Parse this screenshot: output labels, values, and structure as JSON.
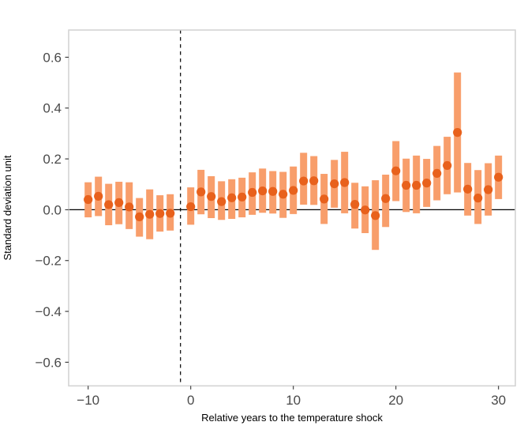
{
  "figure": {
    "background_color": "#ffffff",
    "panel_border_color": "#d4d4d4",
    "tick_mark_color": "#333333",
    "tick_label_color": "#4a4a4a",
    "zero_line_color": "#000000",
    "reference_line_color": "#000000",
    "point_color": "#e8611c",
    "interval_bar_color": "#f89e6b"
  },
  "chart_data": {
    "type": "scatter",
    "subtype": "event-study point estimates with confidence interval bars",
    "title": "",
    "xlabel": "Relative years to the temperature shock",
    "ylabel": "Standard deviation unit",
    "xlim": [
      -11.9,
      31.64
    ],
    "ylim": [
      -0.693,
      0.707
    ],
    "grid": "off",
    "legend": "none",
    "x_ticks": [
      -10,
      0,
      10,
      20,
      30
    ],
    "x_tick_labels": [
      "−10",
      "0",
      "10",
      "20",
      "30"
    ],
    "y_ticks": [
      0.6,
      0.4,
      0.2,
      0.0,
      -0.2,
      -0.4,
      -0.6
    ],
    "y_tick_labels": [
      "0.6",
      "0.4",
      "0.2",
      "0.0",
      "−0.2",
      "−0.4",
      "−0.6"
    ],
    "zero_line_y": 0,
    "reference_line_x": -1,
    "omitted_reference_year": -1,
    "points": [
      {
        "x": -10,
        "y": 0.04,
        "lo": -0.03,
        "hi": 0.108
      },
      {
        "x": -9,
        "y": 0.053,
        "lo": -0.025,
        "hi": 0.13
      },
      {
        "x": -8,
        "y": 0.02,
        "lo": -0.061,
        "hi": 0.102
      },
      {
        "x": -7,
        "y": 0.028,
        "lo": -0.057,
        "hi": 0.11
      },
      {
        "x": -6,
        "y": 0.011,
        "lo": -0.076,
        "hi": 0.108
      },
      {
        "x": -5,
        "y": -0.028,
        "lo": -0.106,
        "hi": 0.046
      },
      {
        "x": -4,
        "y": -0.018,
        "lo": -0.116,
        "hi": 0.08
      },
      {
        "x": -3,
        "y": -0.015,
        "lo": -0.086,
        "hi": 0.057
      },
      {
        "x": -2,
        "y": -0.014,
        "lo": -0.082,
        "hi": 0.061
      },
      {
        "x": 0,
        "y": 0.012,
        "lo": -0.059,
        "hi": 0.088
      },
      {
        "x": 1,
        "y": 0.07,
        "lo": -0.018,
        "hi": 0.157
      },
      {
        "x": 2,
        "y": 0.052,
        "lo": -0.033,
        "hi": 0.132
      },
      {
        "x": 3,
        "y": 0.032,
        "lo": -0.04,
        "hi": 0.112
      },
      {
        "x": 4,
        "y": 0.047,
        "lo": -0.036,
        "hi": 0.12
      },
      {
        "x": 5,
        "y": 0.05,
        "lo": -0.03,
        "hi": 0.126
      },
      {
        "x": 6,
        "y": 0.068,
        "lo": -0.02,
        "hi": 0.147
      },
      {
        "x": 7,
        "y": 0.074,
        "lo": -0.012,
        "hi": 0.162
      },
      {
        "x": 8,
        "y": 0.072,
        "lo": -0.015,
        "hi": 0.152
      },
      {
        "x": 9,
        "y": 0.061,
        "lo": -0.032,
        "hi": 0.149
      },
      {
        "x": 10,
        "y": 0.076,
        "lo": -0.017,
        "hi": 0.17
      },
      {
        "x": 11,
        "y": 0.113,
        "lo": 0.02,
        "hi": 0.224
      },
      {
        "x": 12,
        "y": 0.114,
        "lo": 0.019,
        "hi": 0.211
      },
      {
        "x": 13,
        "y": 0.042,
        "lo": -0.056,
        "hi": 0.141
      },
      {
        "x": 14,
        "y": 0.102,
        "lo": 0.008,
        "hi": 0.196
      },
      {
        "x": 15,
        "y": 0.107,
        "lo": -0.014,
        "hi": 0.228
      },
      {
        "x": 16,
        "y": 0.021,
        "lo": -0.074,
        "hi": 0.106
      },
      {
        "x": 17,
        "y": -0.001,
        "lo": -0.092,
        "hi": 0.092
      },
      {
        "x": 18,
        "y": -0.023,
        "lo": -0.158,
        "hi": 0.116
      },
      {
        "x": 19,
        "y": 0.044,
        "lo": -0.068,
        "hi": 0.138
      },
      {
        "x": 20,
        "y": 0.153,
        "lo": 0.034,
        "hi": 0.27
      },
      {
        "x": 21,
        "y": 0.096,
        "lo": -0.009,
        "hi": 0.201
      },
      {
        "x": 22,
        "y": 0.096,
        "lo": -0.014,
        "hi": 0.213
      },
      {
        "x": 23,
        "y": 0.105,
        "lo": 0.011,
        "hi": 0.2
      },
      {
        "x": 24,
        "y": 0.143,
        "lo": 0.037,
        "hi": 0.251
      },
      {
        "x": 25,
        "y": 0.174,
        "lo": 0.061,
        "hi": 0.287
      },
      {
        "x": 26,
        "y": 0.304,
        "lo": 0.068,
        "hi": 0.54
      },
      {
        "x": 27,
        "y": 0.081,
        "lo": -0.023,
        "hi": 0.184
      },
      {
        "x": 28,
        "y": 0.046,
        "lo": -0.056,
        "hi": 0.156
      },
      {
        "x": 29,
        "y": 0.079,
        "lo": -0.023,
        "hi": 0.183
      },
      {
        "x": 30,
        "y": 0.128,
        "lo": 0.042,
        "hi": 0.213
      }
    ]
  }
}
